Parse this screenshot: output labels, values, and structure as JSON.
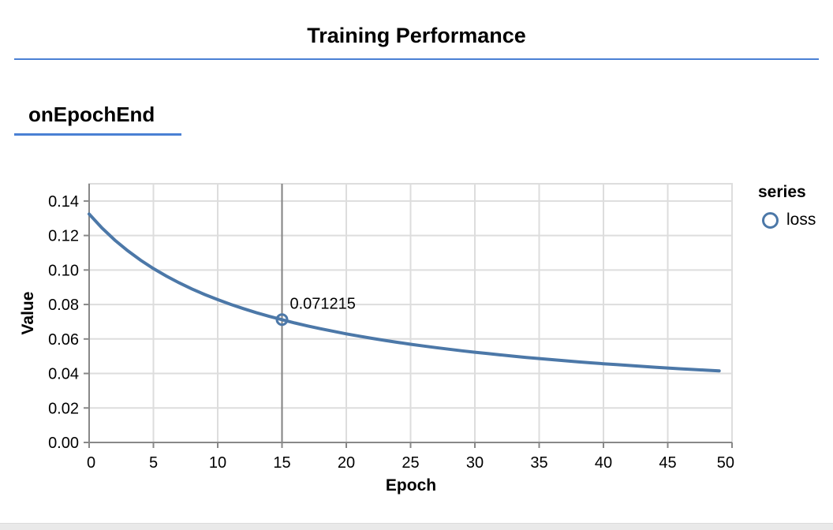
{
  "page": {
    "title": "Training Performance",
    "section_title": "onEpochEnd",
    "accent_color": "#4a80d4"
  },
  "chart_data": {
    "type": "line",
    "xlabel": "Epoch",
    "ylabel": "Value",
    "xlim": [
      0,
      50
    ],
    "ylim": [
      0,
      0.15
    ],
    "x_ticks": [
      "0",
      "5",
      "10",
      "15",
      "20",
      "25",
      "30",
      "35",
      "40",
      "45",
      "50"
    ],
    "y_ticks": [
      "0.00",
      "0.02",
      "0.04",
      "0.06",
      "0.08",
      "0.10",
      "0.12",
      "0.14"
    ],
    "grid": true,
    "colors": {
      "gridline": "#dddddd",
      "axis": "#888888",
      "hover_rule": "#828282"
    },
    "legend": {
      "title": "series",
      "position": "right",
      "entries": [
        {
          "label": "loss",
          "color": "#4c78a8"
        }
      ]
    },
    "series": [
      {
        "name": "loss",
        "color": "#4c78a8",
        "x": [
          0,
          1,
          2,
          3,
          4,
          5,
          6,
          7,
          8,
          9,
          10,
          11,
          12,
          13,
          14,
          15,
          16,
          17,
          18,
          19,
          20,
          21,
          22,
          23,
          24,
          25,
          26,
          27,
          28,
          29,
          30,
          31,
          32,
          33,
          34,
          35,
          36,
          37,
          38,
          39,
          40,
          41,
          42,
          43,
          44,
          45,
          46,
          47,
          48,
          49
        ],
        "values": [
          0.132439,
          0.124352,
          0.117323,
          0.111156,
          0.105702,
          0.100844,
          0.096489,
          0.092564,
          0.089007,
          0.085769,
          0.082809,
          0.080092,
          0.077591,
          0.075279,
          0.073137,
          0.071215,
          0.069291,
          0.067559,
          0.065937,
          0.064416,
          0.062986,
          0.06164,
          0.060369,
          0.059169,
          0.058033,
          0.056957,
          0.055935,
          0.054964,
          0.05404,
          0.053159,
          0.05232,
          0.051518,
          0.050752,
          0.050018,
          0.049316,
          0.048643,
          0.047997,
          0.047377,
          0.046781,
          0.046207,
          0.045655,
          0.045124,
          0.044612,
          0.044118,
          0.043641,
          0.043181,
          0.042736,
          0.042306,
          0.04189,
          0.041487
        ]
      }
    ],
    "tooltip": {
      "x": 15,
      "value": 0.071215,
      "label": "0.071215"
    }
  }
}
